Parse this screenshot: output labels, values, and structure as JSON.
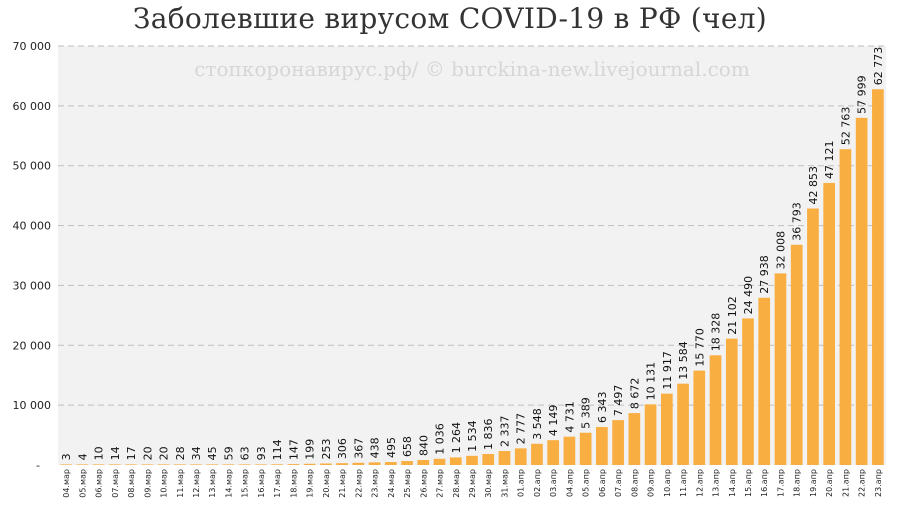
{
  "chart_data": {
    "type": "bar",
    "title": "Заболевшие вирусом COVID-19 в РФ (чел)",
    "watermark": "стопкоронавирус.рф/ © burckina-new.livejournal.com",
    "xlabel": "",
    "ylabel": "",
    "ylim": [
      0,
      70000
    ],
    "yticks": [
      0,
      10000,
      20000,
      30000,
      40000,
      50000,
      60000,
      70000
    ],
    "ytick_labels": [
      "-",
      "10 000",
      "20 000",
      "30 000",
      "40 000",
      "50 000",
      "60 000",
      "70 000"
    ],
    "grid": true,
    "bar_color": "#F9AE41",
    "plot_background": "#F2F2F2",
    "grid_color": "#BFBFBF",
    "categories": [
      "04.мар",
      "05.мар",
      "06.мар",
      "07.мар",
      "08.мар",
      "09.мар",
      "10.мар",
      "11.мар",
      "12.мар",
      "13.мар",
      "14.мар",
      "15.мар",
      "16.мар",
      "17.мар",
      "18.мар",
      "19.мар",
      "20.мар",
      "21.мар",
      "22.мар",
      "23.мар",
      "24.мар",
      "25.мар",
      "26.мар",
      "27.мар",
      "28.мар",
      "29.мар",
      "30.мар",
      "31.мар",
      "01.апр",
      "02.апр",
      "03.апр",
      "04.апр",
      "05.апр",
      "06.апр",
      "07.апр",
      "08.апр",
      "09.апр",
      "10.апр",
      "11.апр",
      "12.апр",
      "13.апр",
      "14.апр",
      "15.апр",
      "16.апр",
      "17.апр",
      "18.апр",
      "19.апр",
      "20.апр",
      "21.апр",
      "22.апр",
      "23.апр"
    ],
    "values": [
      3,
      4,
      10,
      14,
      17,
      20,
      20,
      28,
      34,
      45,
      59,
      63,
      93,
      114,
      147,
      199,
      253,
      306,
      367,
      438,
      495,
      658,
      840,
      1036,
      1264,
      1534,
      1836,
      2337,
      2777,
      3548,
      4149,
      4731,
      5389,
      6343,
      7497,
      8672,
      10131,
      11917,
      13584,
      15770,
      18328,
      21102,
      24490,
      27938,
      32008,
      36793,
      42853,
      47121,
      52763,
      57999,
      62773
    ],
    "data_labels": [
      "3",
      "4",
      "10",
      "14",
      "17",
      "20",
      "20",
      "28",
      "34",
      "45",
      "59",
      "63",
      "93",
      "114",
      "147",
      "199",
      "253",
      "306",
      "367",
      "438",
      "495",
      "658",
      "840",
      "1 036",
      "1 264",
      "1 534",
      "1 836",
      "2 337",
      "2 777",
      "3 548",
      "4 149",
      "4 731",
      "5 389",
      "6 343",
      "7 497",
      "8 672",
      "10 131",
      "11 917",
      "13 584",
      "15 770",
      "18 328",
      "21 102",
      "24 490",
      "27 938",
      "32 008",
      "36 793",
      "42 853",
      "47 121",
      "52 763",
      "57 999",
      "62 773"
    ]
  }
}
